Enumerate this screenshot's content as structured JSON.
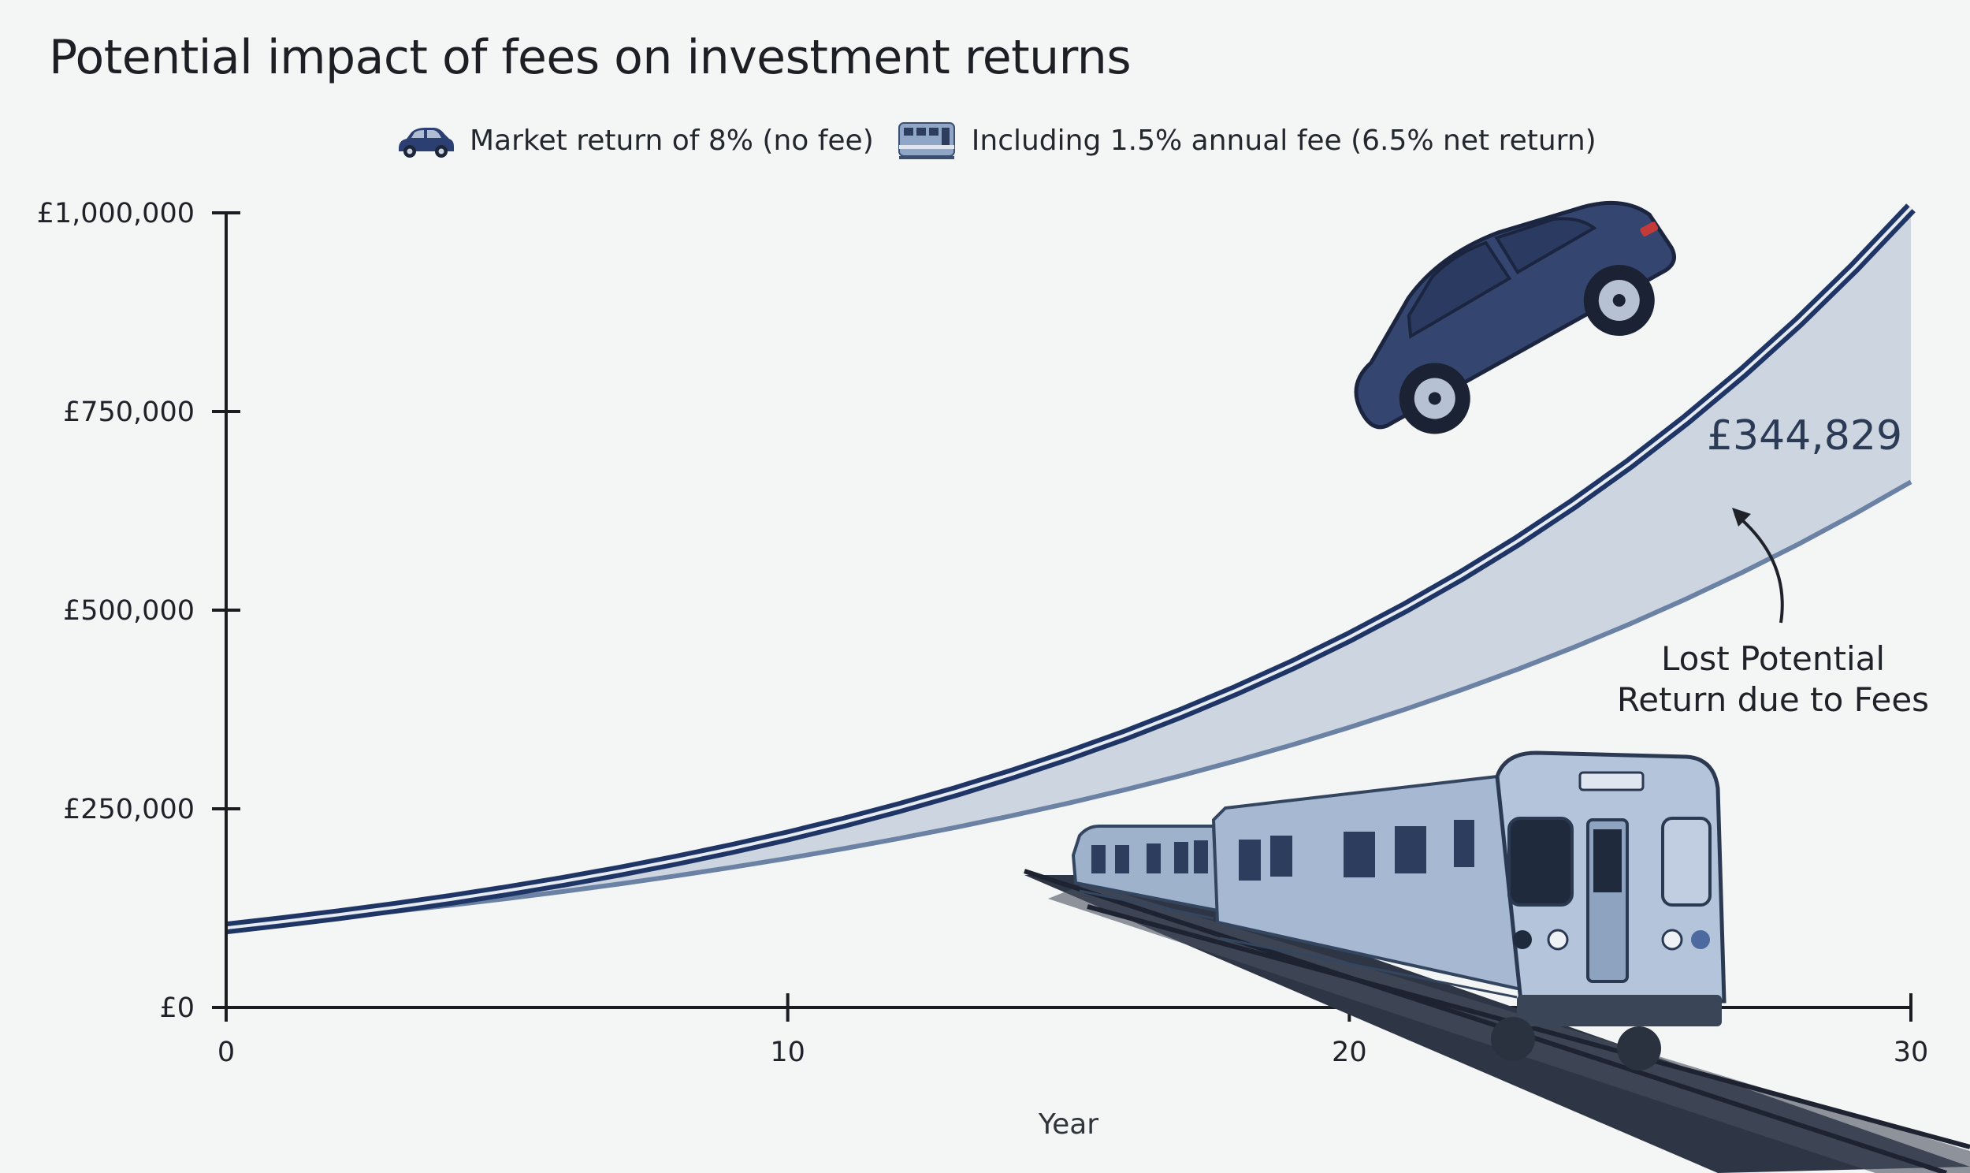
{
  "chart_data": {
    "type": "line",
    "title": "Potential impact of fees on investment returns",
    "xlabel": "Year",
    "ylabel": "",
    "xlim": [
      0,
      30
    ],
    "ylim": [
      0,
      1000000
    ],
    "x_ticks": [
      0,
      10,
      20,
      30
    ],
    "x_tick_labels": [
      "0",
      "10",
      "20",
      "30"
    ],
    "y_ticks": [
      0,
      250000,
      500000,
      750000,
      1000000
    ],
    "y_tick_labels": [
      "£0",
      "£250,000",
      "£500,000",
      "£750,000",
      "£1,000,000"
    ],
    "legend_position": "top",
    "grid": false,
    "initial_investment": 100000,
    "x": [
      0,
      1,
      2,
      3,
      4,
      5,
      6,
      7,
      8,
      9,
      10,
      11,
      12,
      13,
      14,
      15,
      16,
      17,
      18,
      19,
      20,
      21,
      22,
      23,
      24,
      25,
      26,
      27,
      28,
      29,
      30
    ],
    "series": [
      {
        "name": "Market return of 8% (no fee)",
        "icon": "car-icon",
        "color": "#1f3566",
        "values": [
          100000,
          108000,
          116640,
          125971,
          136049,
          146933,
          158687,
          171382,
          185093,
          199900,
          215892,
          233164,
          251817,
          271962,
          293719,
          317217,
          342594,
          370002,
          399602,
          431570,
          466096,
          503383,
          543654,
          587146,
          634118,
          684848,
          739635,
          798806,
          862711,
          931727,
          1006266
        ]
      },
      {
        "name": "Including 1.5% annual fee (6.5% net return)",
        "icon": "train-icon",
        "color": "#6b82a5",
        "values": [
          100000,
          106500,
          113423,
          120795,
          128647,
          137009,
          145914,
          155399,
          165500,
          176257,
          187714,
          199915,
          212910,
          226749,
          241487,
          257184,
          273901,
          291704,
          310665,
          330858,
          352364,
          375268,
          399660,
          425638,
          453304,
          482769,
          514149,
          547569,
          583161,
          621066,
          661437
        ]
      }
    ],
    "annotations": {
      "gap_value": "£344,829",
      "gap_label_line1": "Lost Potential",
      "gap_label_line2": "Return due to Fees"
    },
    "colors": {
      "background": "#f4f5f5",
      "axis": "#1b1d21",
      "gap_fill": "#bfc9d8"
    }
  }
}
